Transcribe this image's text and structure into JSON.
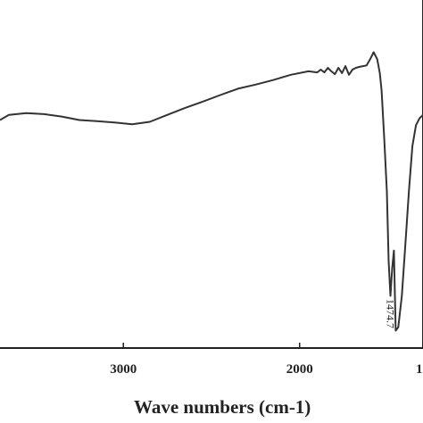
{
  "chart_data": {
    "type": "line",
    "title": "",
    "xlabel": "Wave numbers (cm-1)",
    "ylabel": "",
    "x_reversed": true,
    "xlim": [
      3700,
      1300
    ],
    "ylim": [
      0,
      1
    ],
    "grid": false,
    "ticks": [
      3000,
      2000,
      "1"
    ],
    "series": [
      {
        "x": [
          3700,
          3650,
          3550,
          3450,
          3350,
          3250,
          3150,
          3050,
          2950,
          2850,
          2750,
          2650,
          2550,
          2450,
          2350,
          2250,
          2150,
          2050,
          1950,
          1900,
          1880,
          1860,
          1840,
          1820,
          1800,
          1780,
          1760,
          1740,
          1720,
          1700,
          1680,
          1660,
          1640,
          1620,
          1600,
          1580,
          1560,
          1545,
          1535,
          1520,
          1505,
          1495,
          1485,
          1474.7,
          1465,
          1455,
          1440,
          1420,
          1400,
          1380,
          1360,
          1340,
          1320,
          1300
        ],
        "y": [
          0.655,
          0.67,
          0.675,
          0.672,
          0.665,
          0.655,
          0.652,
          0.648,
          0.643,
          0.65,
          0.67,
          0.69,
          0.708,
          0.727,
          0.745,
          0.757,
          0.77,
          0.785,
          0.795,
          0.792,
          0.8,
          0.792,
          0.805,
          0.795,
          0.787,
          0.805,
          0.79,
          0.81,
          0.785,
          0.8,
          0.805,
          0.808,
          0.81,
          0.812,
          0.83,
          0.85,
          0.83,
          0.79,
          0.74,
          0.6,
          0.45,
          0.25,
          0.15,
          0.23,
          0.28,
          0.05,
          0.06,
          0.15,
          0.3,
          0.45,
          0.58,
          0.64,
          0.66,
          0.67
        ]
      }
    ],
    "annotations": [
      {
        "text": "1474.7",
        "x": 1474.7
      }
    ],
    "line_color": "#333333"
  }
}
